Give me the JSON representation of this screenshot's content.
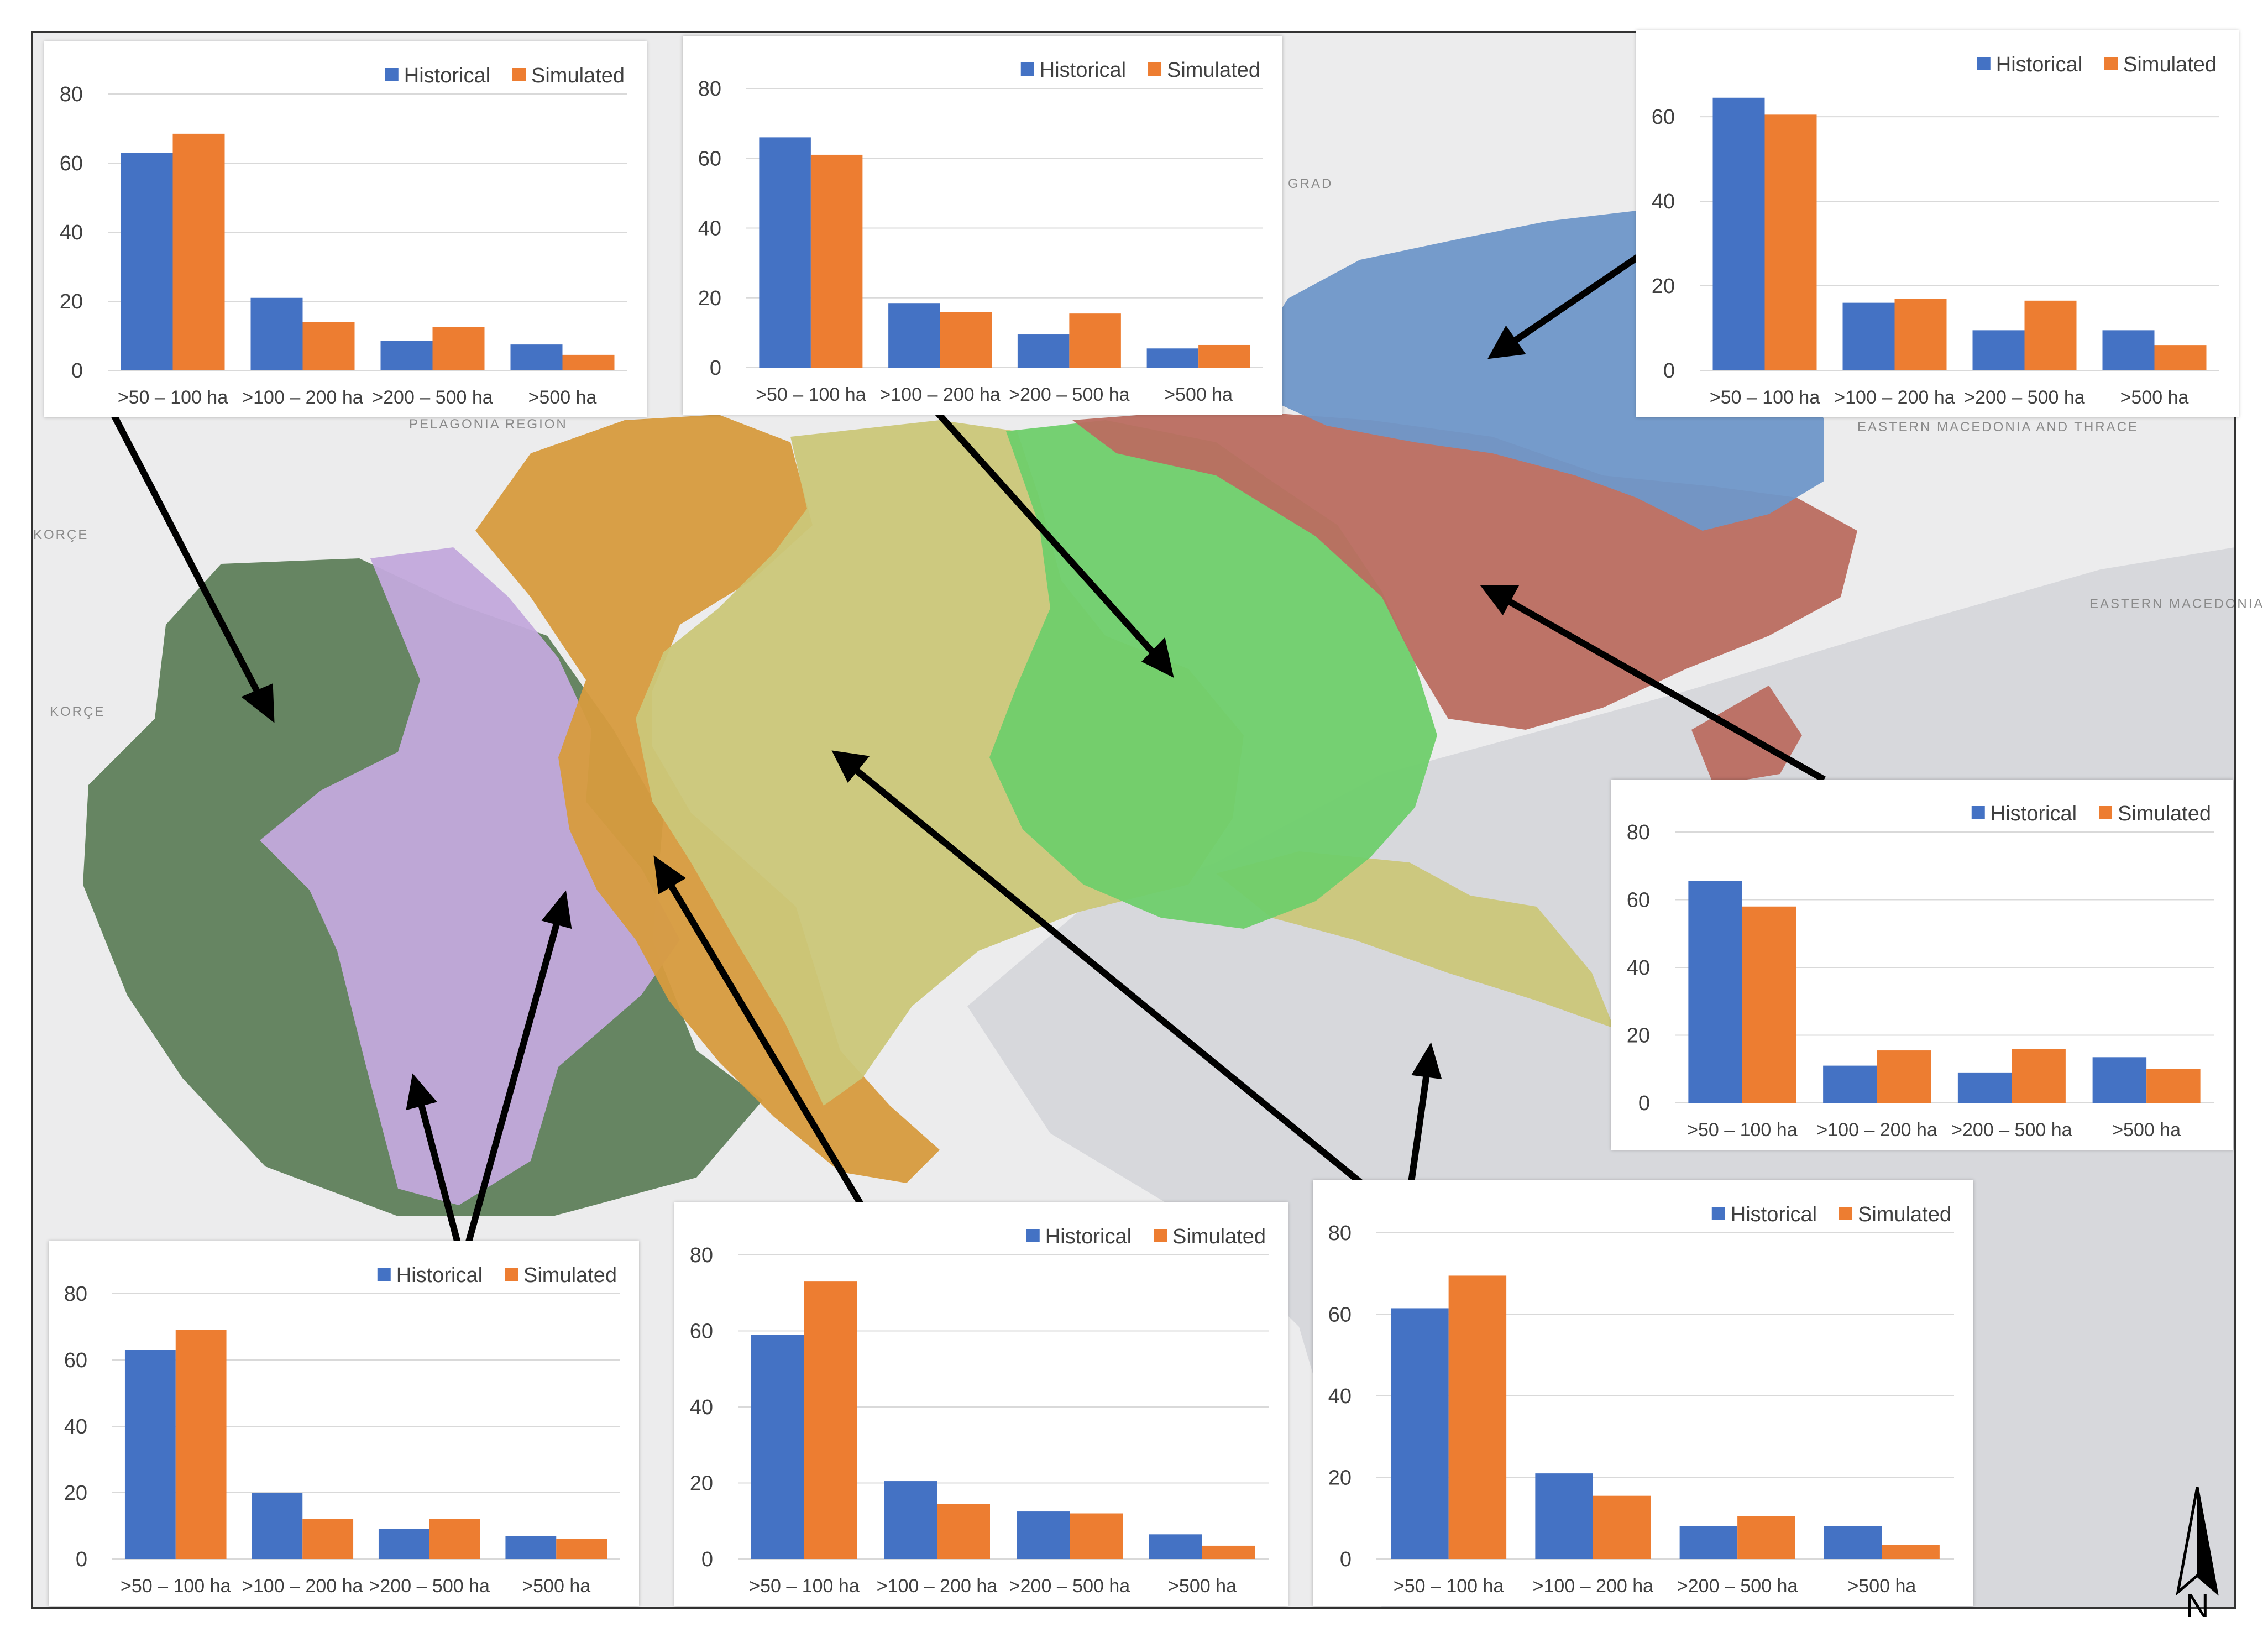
{
  "colors": {
    "historical": "#4472C4",
    "simulated": "#ED7D31",
    "sea": "#d7d8dc",
    "land": "#ececed",
    "zone_darkgreen": "#5f7f5b",
    "zone_lavender": "#c3a9dc",
    "zone_amber": "#d79b3e",
    "zone_khaki": "#cbc779",
    "zone_green": "#6fcf6b",
    "zone_red": "#bb6d60",
    "zone_blue": "#6f97c9",
    "grid": "#d9d9d9",
    "arrow": "#000000"
  },
  "map": {
    "labels": [
      "PELAGONIA REGION",
      "KORÇE",
      "KORÇE",
      "EASTERN MACEDONIA AND THRACE",
      "EASTERN MACEDONIA AND THRACE",
      "GRAD"
    ],
    "north_label": "N"
  },
  "chart_data": [
    {
      "type": "bar",
      "categories": [
        ">50 – 100 ha",
        ">100 – 200 ha",
        ">200 – 500 ha",
        ">500 ha"
      ],
      "series": [
        {
          "name": "Historical",
          "values": [
            63,
            21,
            8.5,
            7.5
          ]
        },
        {
          "name": "Simulated",
          "values": [
            68.5,
            14,
            12.5,
            4.5
          ]
        }
      ],
      "yticks": [
        0,
        20,
        40,
        60,
        80
      ],
      "ylim": [
        0,
        80
      ],
      "grid": true,
      "legend": "top-right",
      "title": "",
      "xlabel": "",
      "ylabel": ""
    },
    {
      "type": "bar",
      "categories": [
        ">50 – 100 ha",
        ">100 – 200 ha",
        ">200 – 500 ha",
        ">500 ha"
      ],
      "series": [
        {
          "name": "Historical",
          "values": [
            66,
            18.5,
            9.5,
            5.5
          ]
        },
        {
          "name": "Simulated",
          "values": [
            61,
            16,
            15.5,
            6.5
          ]
        }
      ],
      "yticks": [
        0,
        20,
        40,
        60,
        80
      ],
      "ylim": [
        0,
        80
      ],
      "grid": true,
      "legend": "top-right",
      "title": "",
      "xlabel": "",
      "ylabel": ""
    },
    {
      "type": "bar",
      "categories": [
        ">50 – 100 ha",
        ">100 – 200 ha",
        ">200 – 500 ha",
        ">500 ha"
      ],
      "series": [
        {
          "name": "Historical",
          "values": [
            64.5,
            16,
            9.5,
            9.5
          ]
        },
        {
          "name": "Simulated",
          "values": [
            60.5,
            17,
            16.5,
            6
          ]
        }
      ],
      "yticks": [
        0,
        20,
        40,
        60
      ],
      "ylim": [
        0,
        68
      ],
      "grid": true,
      "legend": "top-right",
      "title": "",
      "xlabel": "",
      "ylabel": ""
    },
    {
      "type": "bar",
      "categories": [
        ">50 – 100 ha",
        ">100 – 200 ha",
        ">200 – 500 ha",
        ">500 ha"
      ],
      "series": [
        {
          "name": "Historical",
          "values": [
            65.5,
            11,
            9,
            13.5
          ]
        },
        {
          "name": "Simulated",
          "values": [
            58,
            15.5,
            16,
            10
          ]
        }
      ],
      "yticks": [
        0,
        20,
        40,
        60,
        80
      ],
      "ylim": [
        0,
        80
      ],
      "grid": true,
      "legend": "top-right",
      "title": "",
      "xlabel": "",
      "ylabel": ""
    },
    {
      "type": "bar",
      "categories": [
        ">50 – 100 ha",
        ">100 – 200 ha",
        ">200 – 500 ha",
        ">500 ha"
      ],
      "series": [
        {
          "name": "Historical",
          "values": [
            63,
            20,
            9,
            7
          ]
        },
        {
          "name": "Simulated",
          "values": [
            69,
            12,
            12,
            6
          ]
        }
      ],
      "yticks": [
        0,
        20,
        40,
        60,
        80
      ],
      "ylim": [
        0,
        80
      ],
      "grid": true,
      "legend": "top-right",
      "title": "",
      "xlabel": "",
      "ylabel": ""
    },
    {
      "type": "bar",
      "categories": [
        ">50 – 100 ha",
        ">100 – 200 ha",
        ">200 – 500 ha",
        ">500 ha"
      ],
      "series": [
        {
          "name": "Historical",
          "values": [
            59,
            20.5,
            12.5,
            6.5
          ]
        },
        {
          "name": "Simulated",
          "values": [
            73,
            14.5,
            12,
            3.5
          ]
        }
      ],
      "yticks": [
        0,
        20,
        40,
        60,
        80
      ],
      "ylim": [
        0,
        80
      ],
      "grid": true,
      "legend": "top-right",
      "title": "",
      "xlabel": "",
      "ylabel": ""
    },
    {
      "type": "bar",
      "categories": [
        ">50 – 100 ha",
        ">100 – 200 ha",
        ">200 – 500 ha",
        ">500 ha"
      ],
      "series": [
        {
          "name": "Historical",
          "values": [
            61.5,
            21,
            8,
            8
          ]
        },
        {
          "name": "Simulated",
          "values": [
            69.5,
            15.5,
            10.5,
            3.5
          ]
        }
      ],
      "yticks": [
        0,
        20,
        40,
        60,
        80
      ],
      "ylim": [
        0,
        80
      ],
      "grid": true,
      "legend": "top-right",
      "title": "",
      "xlabel": "",
      "ylabel": ""
    }
  ]
}
